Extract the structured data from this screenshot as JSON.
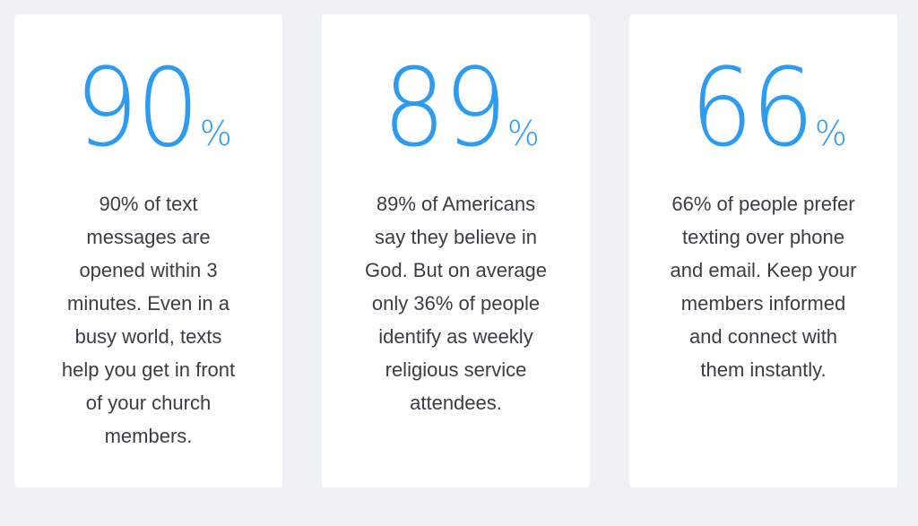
{
  "cards": [
    {
      "number": "90",
      "unit": "%",
      "description": "90% of text messages are opened within 3 minutes. Even in a busy world, texts help you get in front of your church members."
    },
    {
      "number": "89",
      "unit": "%",
      "description": "89% of Americans say they believe in God. But on average only 36% of people identify as weekly religious service attendees."
    },
    {
      "number": "66",
      "unit": "%",
      "description": "66% of people prefer texting over phone and email. Keep your members informed and connect with them instantly."
    }
  ],
  "colors": {
    "accent": "#2d9cf0",
    "text": "#3a3d42",
    "background": "#eef1f5",
    "card": "#ffffff"
  }
}
